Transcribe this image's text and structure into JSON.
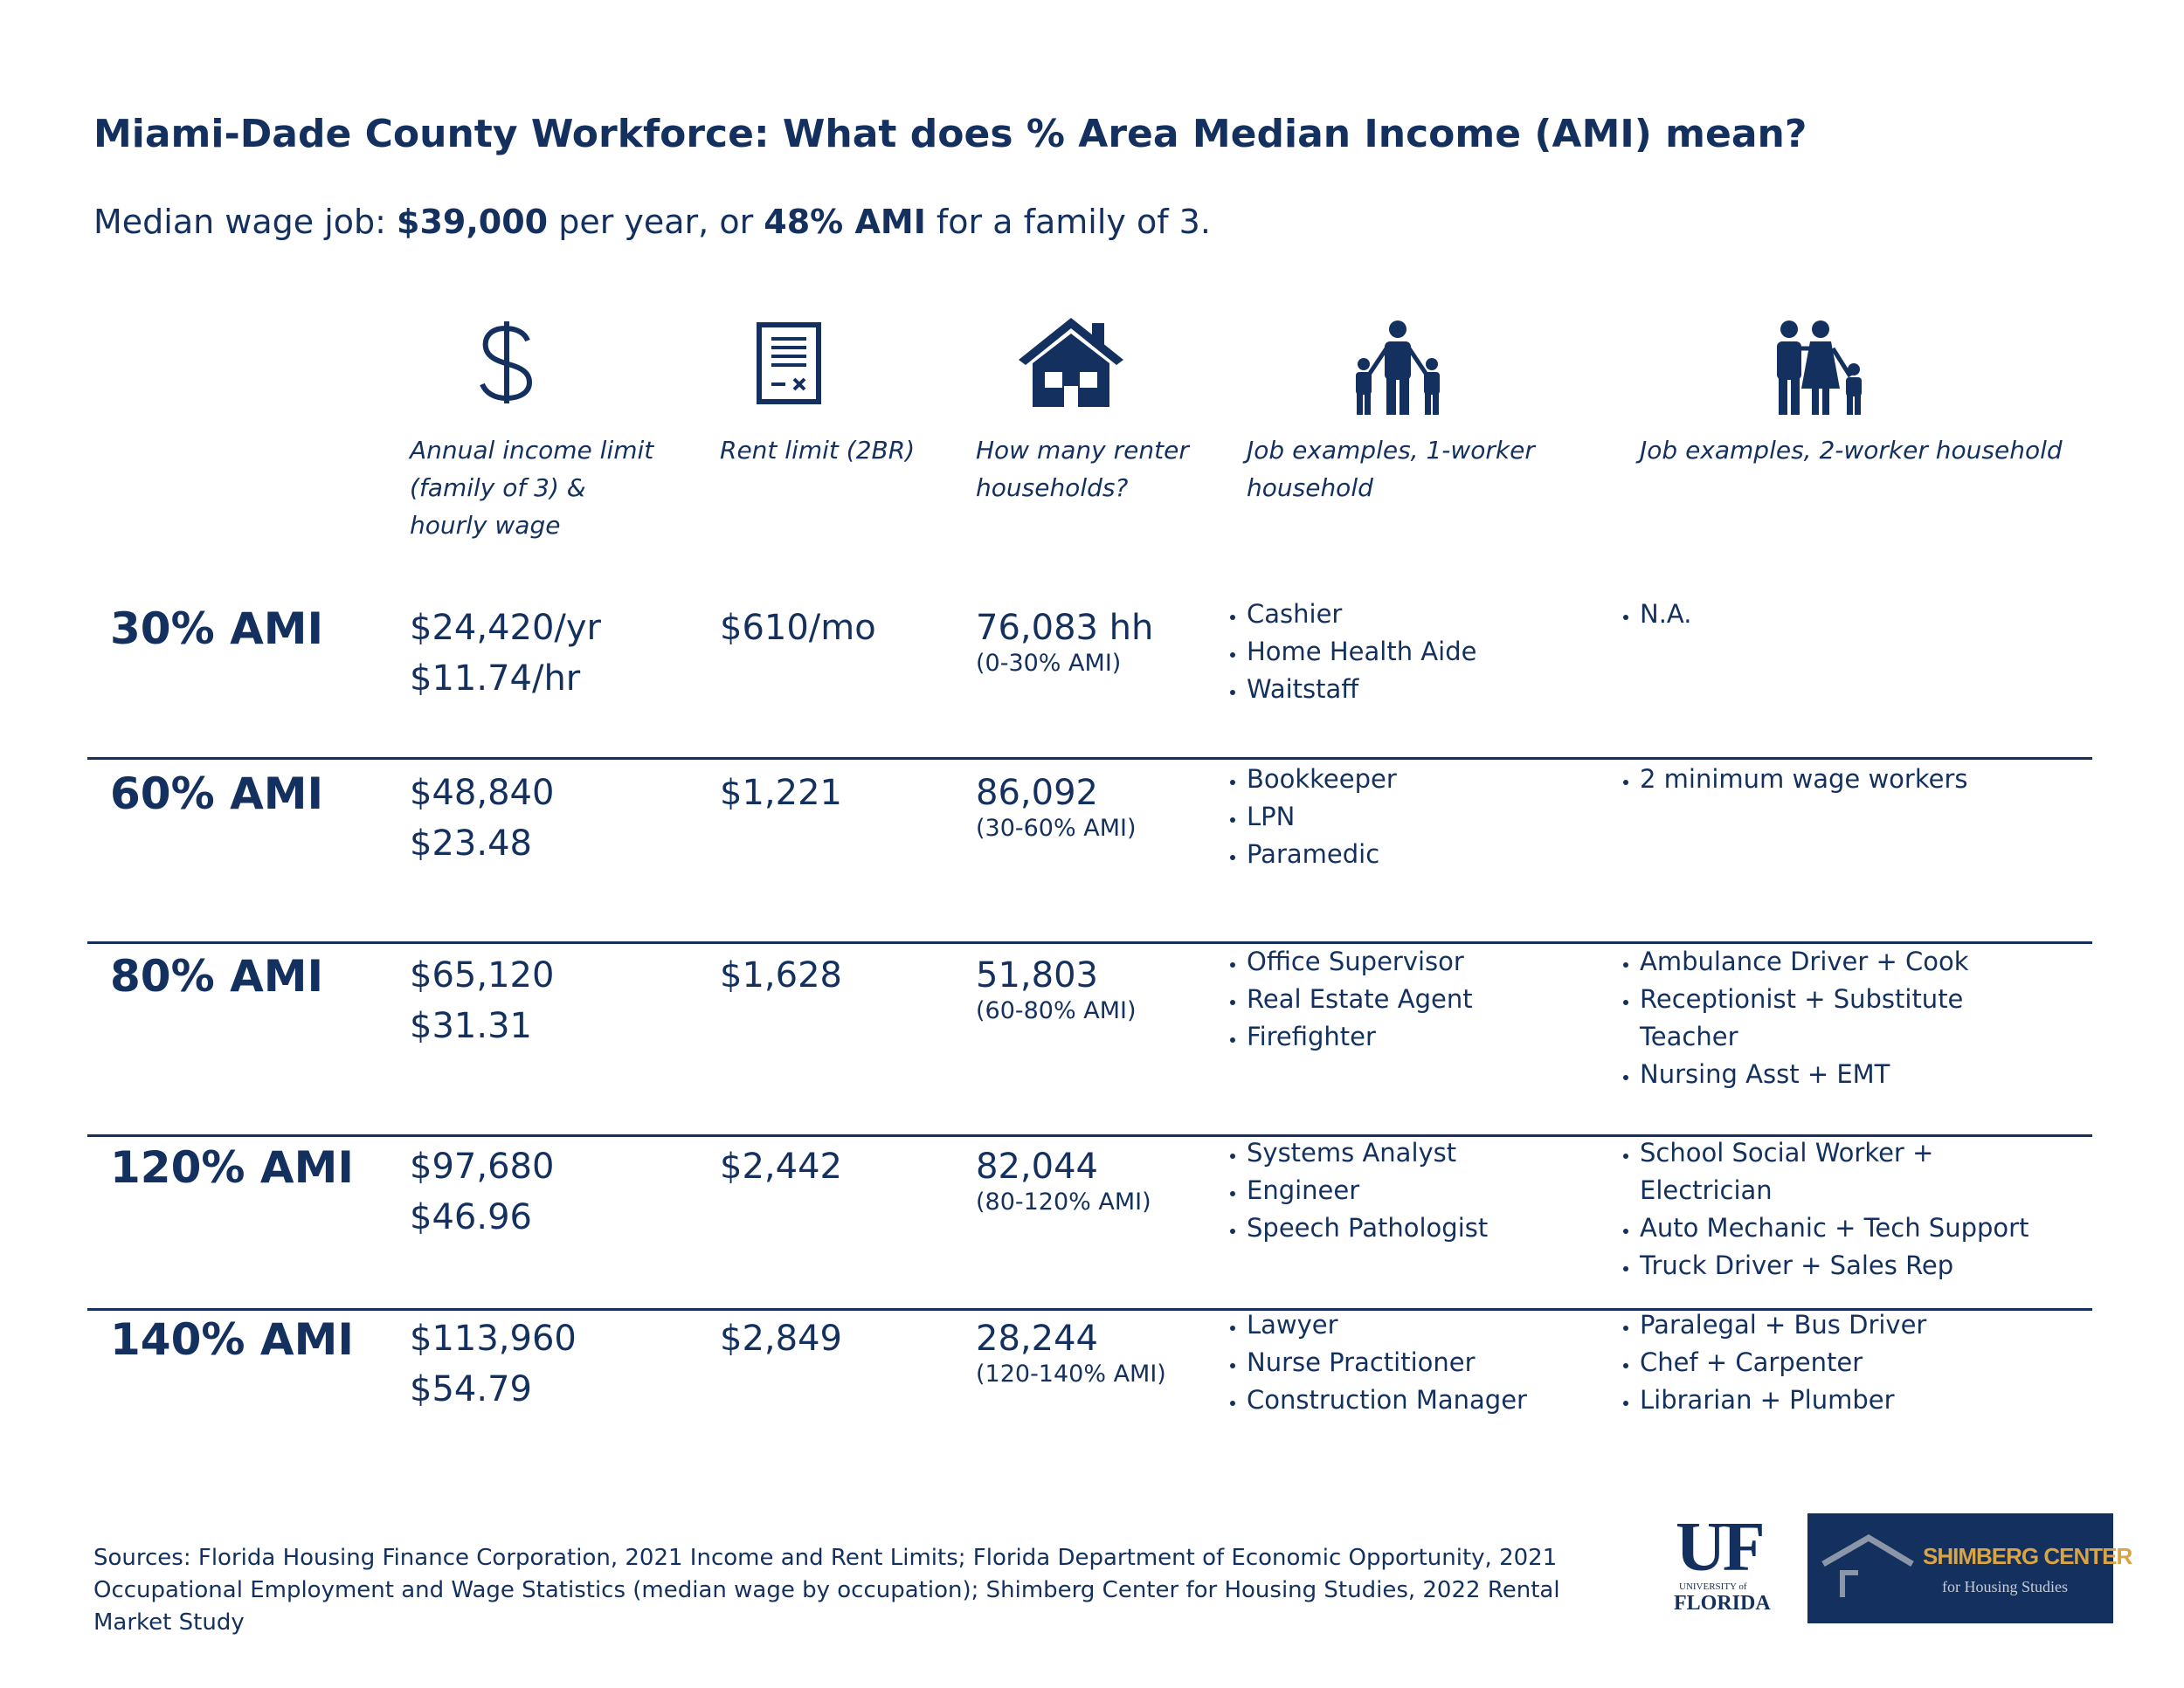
{
  "title": "Miami-Dade County Workforce: What does % Area Median Income (AMI) mean?",
  "subtitle": [
    {
      "text": "Median wage job: ",
      "bold": false
    },
    {
      "text": "$39,000",
      "bold": true
    },
    {
      "text": " per year, or ",
      "bold": false
    },
    {
      "text": "48% AMI",
      "bold": true
    },
    {
      "text": " for a family of 3.",
      "bold": false
    }
  ],
  "headers": [
    [
      "Annual income limit",
      "(family of 3) &",
      "hourly wage"
    ],
    [
      "Rent limit (2BR)"
    ],
    [
      "How many renter",
      "households?"
    ],
    [
      "Job examples, 1-worker",
      "household"
    ],
    [
      "Job examples, 2-worker household"
    ]
  ],
  "rows": [
    {
      "label": "30% AMI",
      "income": [
        "$24,420/yr",
        "$11.74/hr"
      ],
      "rent": "$610/mo",
      "households": "76,083 hh",
      "range": "(0-30% AMI)",
      "jobs1": [
        [
          "Cashier"
        ],
        [
          "Home Health Aide"
        ],
        [
          "Waitstaff"
        ]
      ],
      "jobs2": [
        [
          "N.A."
        ]
      ]
    },
    {
      "label": "60% AMI",
      "income": [
        "$48,840",
        "$23.48"
      ],
      "rent": "$1,221",
      "households": "86,092",
      "range": "(30-60% AMI)",
      "jobs1": [
        [
          "Bookkeeper"
        ],
        [
          "LPN"
        ],
        [
          "Paramedic"
        ]
      ],
      "jobs2": [
        [
          "2 minimum wage workers"
        ]
      ]
    },
    {
      "label": "80% AMI",
      "income": [
        "$65,120",
        "$31.31"
      ],
      "rent": "$1,628",
      "households": "51,803",
      "range": "(60-80% AMI)",
      "jobs1": [
        [
          "Office Supervisor"
        ],
        [
          "Real Estate Agent"
        ],
        [
          "Firefighter"
        ]
      ],
      "jobs2": [
        [
          "Ambulance Driver + Cook"
        ],
        [
          "Receptionist + Substitute",
          "Teacher"
        ],
        [
          "Nursing Asst + EMT"
        ]
      ]
    },
    {
      "label": "120% AMI",
      "income": [
        "$97,680",
        "$46.96"
      ],
      "rent": "$2,442",
      "households": "82,044",
      "range": "(80-120% AMI)",
      "jobs1": [
        [
          "Systems Analyst"
        ],
        [
          "Engineer"
        ],
        [
          "Speech Pathologist"
        ]
      ],
      "jobs2": [
        [
          "School Social Worker +",
          "Electrician"
        ],
        [
          "Auto Mechanic + Tech Support"
        ],
        [
          "Truck Driver + Sales Rep"
        ]
      ]
    },
    {
      "label": "140% AMI",
      "income": [
        "$113,960",
        "$54.79"
      ],
      "rent": "$2,849",
      "households": "28,244",
      "range": "(120-140% AMI)",
      "jobs1": [
        [
          "Lawyer"
        ],
        [
          "Nurse Practitioner"
        ],
        [
          "Construction Manager"
        ]
      ],
      "jobs2": [
        [
          "Paralegal + Bus Driver"
        ],
        [
          "Chef + Carpenter"
        ],
        [
          "Librarian + Plumber"
        ]
      ]
    }
  ],
  "sources": [
    "Sources: Florida Housing Finance Corporation, 2021 Income and Rent Limits; Florida Department of Economic Opportunity, 2021",
    "Occupational Employment and Wage Statistics (median wage by occupation); Shimberg Center for Housing Studies, 2022 Rental",
    "Market Study"
  ],
  "logos": {
    "uf": "UF",
    "uf_sub1": "UNIVERSITY of",
    "uf_sub2": "FLORIDA",
    "shimberg": "SHIMBERG CENTER",
    "shimberg_sub": "for Housing Studies"
  }
}
